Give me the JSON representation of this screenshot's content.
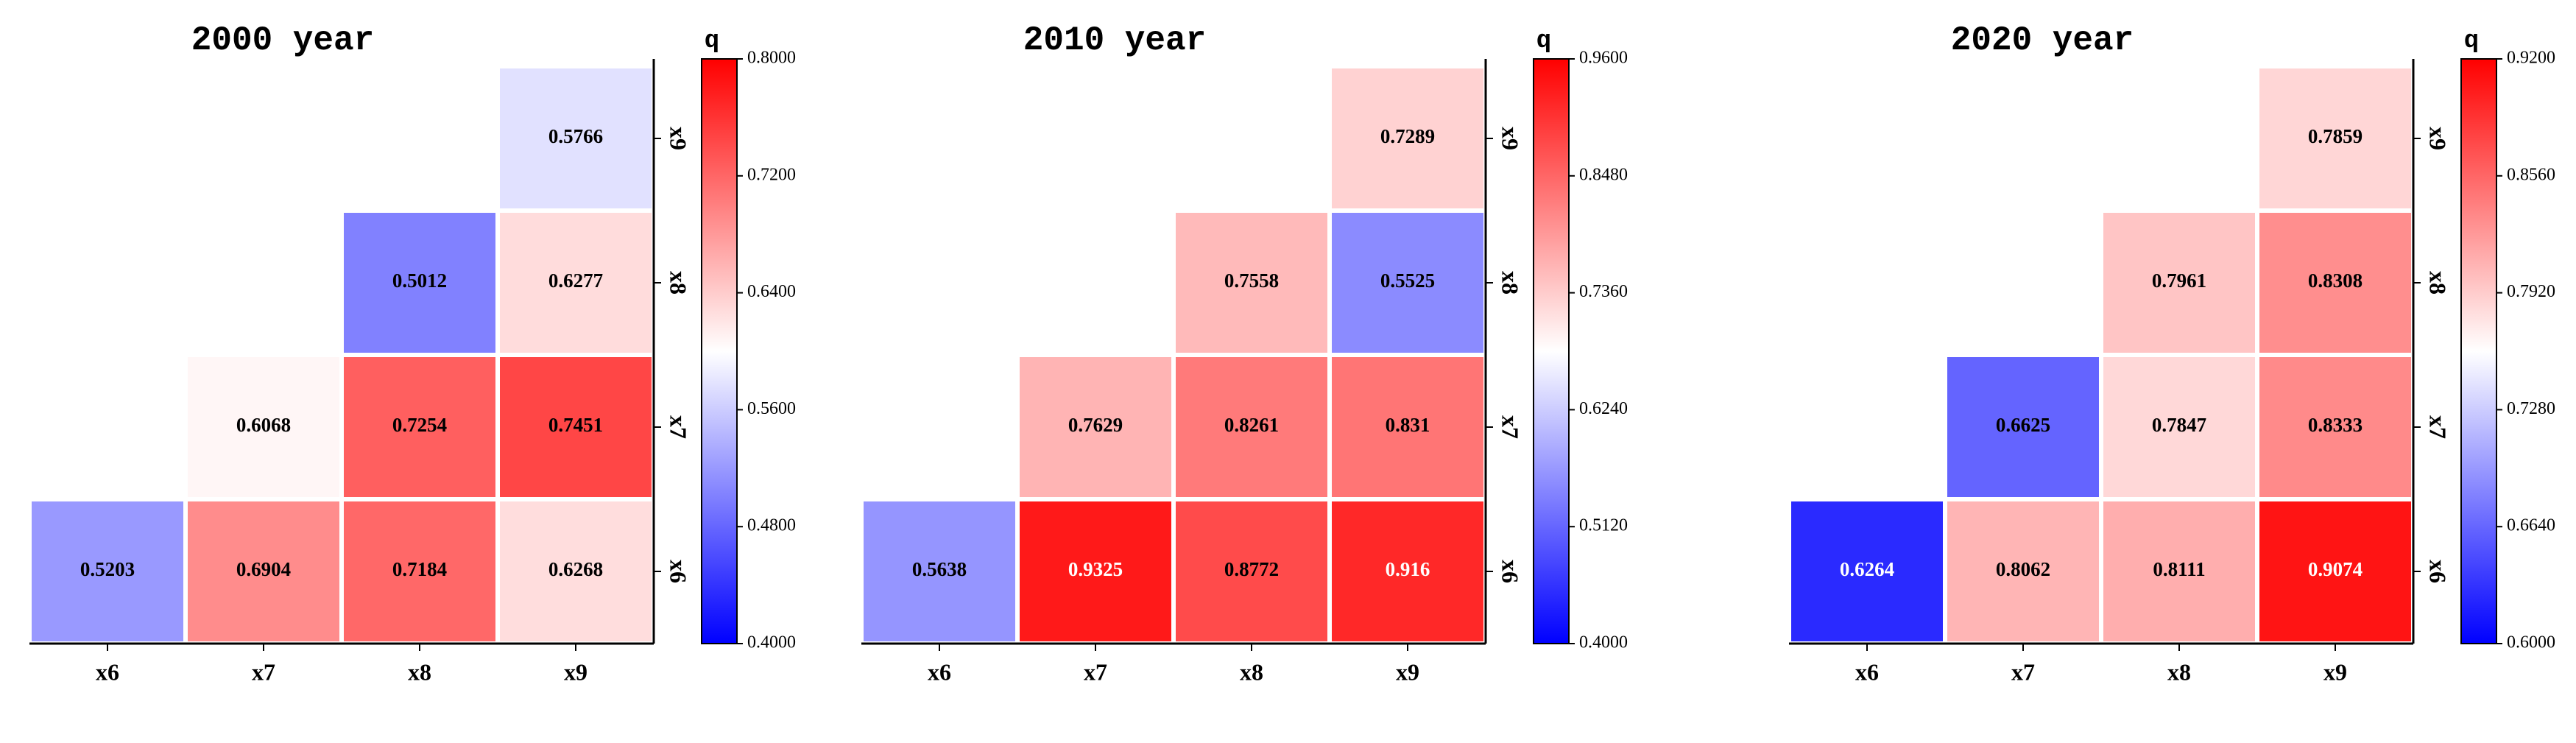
{
  "chart_data": [
    {
      "type": "heatmap",
      "title": "2000 year",
      "colorbar_label": "q",
      "x_categories": [
        "x6",
        "x7",
        "x8",
        "x9"
      ],
      "y_categories": [
        "x6",
        "x7",
        "x8",
        "x9"
      ],
      "values": [
        [
          0.5203,
          0.6904,
          0.7184,
          0.6268
        ],
        [
          null,
          0.6068,
          0.7254,
          0.7451
        ],
        [
          null,
          null,
          0.5012,
          0.6277
        ],
        [
          null,
          null,
          null,
          0.5766
        ]
      ],
      "zlim": [
        0.4,
        0.8
      ],
      "zticks": [
        {
          "value": 0.4,
          "label": "0.4000"
        },
        {
          "value": 0.48,
          "label": "0.4800"
        },
        {
          "value": 0.56,
          "label": "0.5600"
        },
        {
          "value": 0.64,
          "label": "0.6400"
        },
        {
          "value": 0.72,
          "label": "0.7200"
        },
        {
          "value": 0.8,
          "label": "0.8000"
        }
      ],
      "colormap": [
        "#0000ff",
        "#ffffff",
        "#ff0000"
      ]
    },
    {
      "type": "heatmap",
      "title": "2010 year",
      "colorbar_label": "q",
      "x_categories": [
        "x6",
        "x7",
        "x8",
        "x9"
      ],
      "y_categories": [
        "x6",
        "x7",
        "x8",
        "x9"
      ],
      "values": [
        [
          0.5638,
          0.9325,
          0.8772,
          0.916
        ],
        [
          null,
          0.7629,
          0.8261,
          0.831
        ],
        [
          null,
          null,
          0.7558,
          0.5525
        ],
        [
          null,
          null,
          null,
          0.7289
        ]
      ],
      "zlim": [
        0.4,
        0.96
      ],
      "zticks": [
        {
          "value": 0.4,
          "label": "0.4000"
        },
        {
          "value": 0.512,
          "label": "0.5120"
        },
        {
          "value": 0.624,
          "label": "0.6240"
        },
        {
          "value": 0.736,
          "label": "0.7360"
        },
        {
          "value": 0.848,
          "label": "0.8480"
        },
        {
          "value": 0.96,
          "label": "0.9600"
        }
      ],
      "colormap": [
        "#0000ff",
        "#ffffff",
        "#ff0000"
      ]
    },
    {
      "type": "heatmap",
      "title": "2020 year",
      "colorbar_label": "q",
      "x_categories": [
        "x6",
        "x7",
        "x8",
        "x9"
      ],
      "y_categories": [
        "x6",
        "x7",
        "x8",
        "x9"
      ],
      "values": [
        [
          0.6264,
          0.8062,
          0.8111,
          0.9074
        ],
        [
          null,
          0.6625,
          0.7847,
          0.8333
        ],
        [
          null,
          null,
          0.7961,
          0.8308
        ],
        [
          null,
          null,
          null,
          0.7859
        ]
      ],
      "zlim": [
        0.6,
        0.92
      ],
      "zticks": [
        {
          "value": 0.6,
          "label": "0.6000"
        },
        {
          "value": 0.664,
          "label": "0.6640"
        },
        {
          "value": 0.728,
          "label": "0.7280"
        },
        {
          "value": 0.792,
          "label": "0.7920"
        },
        {
          "value": 0.856,
          "label": "0.8560"
        },
        {
          "value": 0.92,
          "label": "0.9200"
        }
      ],
      "colormap": [
        "#0000ff",
        "#ffffff",
        "#ff0000"
      ]
    }
  ]
}
